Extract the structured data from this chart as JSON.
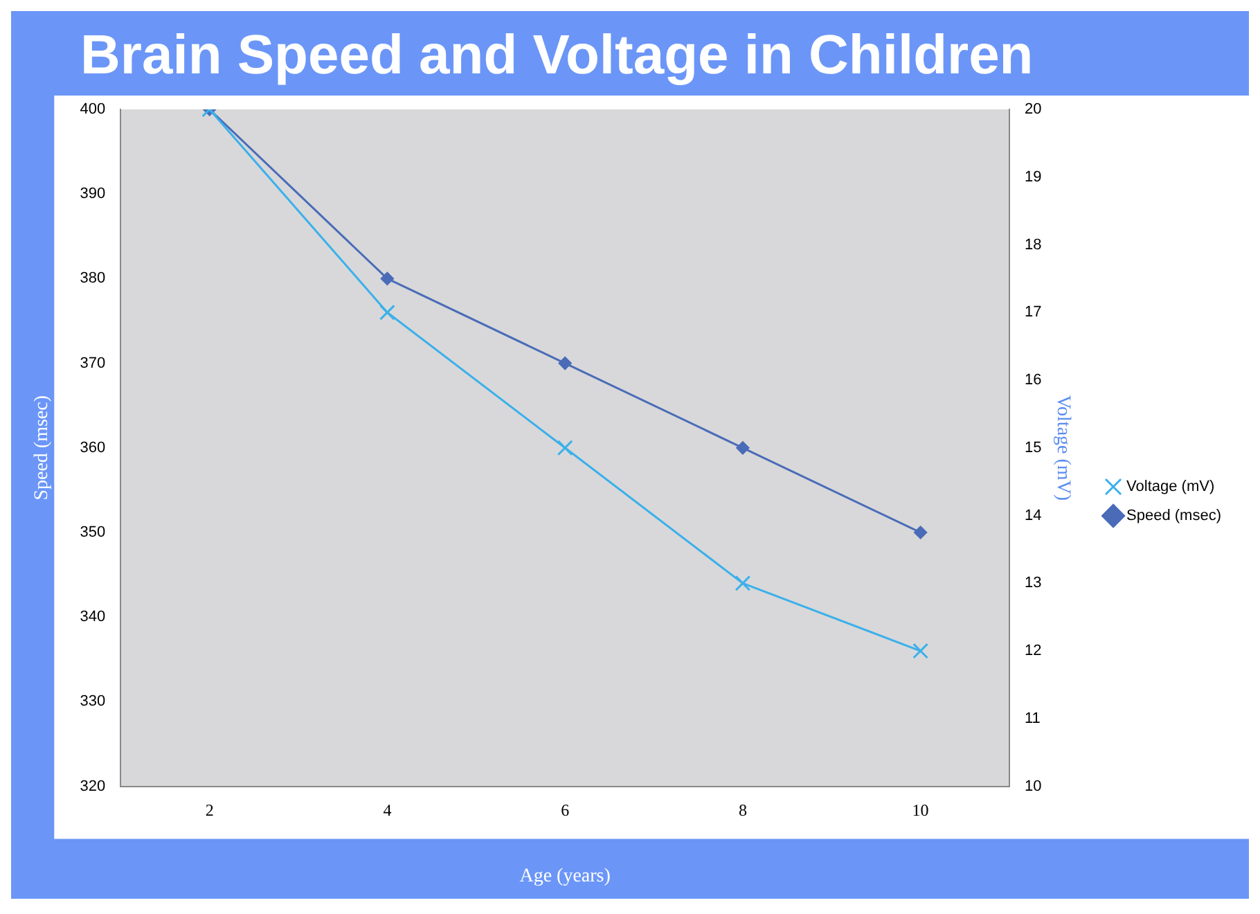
{
  "chart_data": {
    "type": "line",
    "title": "Brain Speed and Voltage in Children",
    "xlabel": "Age (years)",
    "ylabel": "Speed (msec)",
    "y2label": "Voltage (mV)",
    "categories": [
      "2",
      "4",
      "6",
      "8",
      "10"
    ],
    "series": [
      {
        "name": "Speed (msec)",
        "color": "#4a6cb8",
        "marker": "diamond",
        "values": [
          400,
          380,
          370,
          360,
          350
        ]
      },
      {
        "name": "Voltage (mV)",
        "color": "#3bb0ea",
        "marker": "cross",
        "axis": "y2",
        "values": [
          20,
          17,
          15,
          13,
          12
        ]
      }
    ],
    "ylim": [
      320,
      400
    ],
    "yticks": [
      320,
      330,
      340,
      350,
      360,
      370,
      380,
      390,
      400
    ],
    "y2lim": [
      10,
      20
    ],
    "y2ticks": [
      10,
      11,
      12,
      13,
      14,
      15,
      16,
      17,
      18,
      19,
      20
    ],
    "grid": false,
    "legend": "right"
  }
}
